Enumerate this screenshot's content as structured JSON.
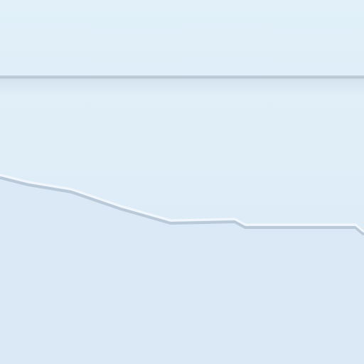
{
  "window": {
    "background_top": "#e1f0f9",
    "background_bottom": "#dbe9f7",
    "divider_color": "#b2c2cf",
    "edge_shadow_color": "#b7c8d6",
    "edge_highlight_color": "#f2f8fd"
  }
}
